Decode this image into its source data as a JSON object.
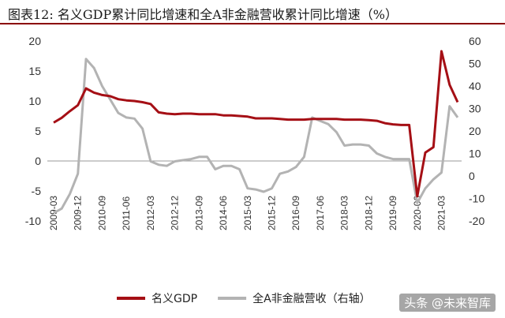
{
  "chart_data": {
    "type": "line",
    "title": "图表12:  名义GDP累计同比增速和全A非金融营收累计同比增速（%）",
    "x_ticks": [
      "2009-03",
      "2009-12",
      "2010-09",
      "2011-06",
      "2012-03",
      "2012-12",
      "2013-09",
      "2014-06",
      "2015-03",
      "2015-12",
      "2016-09",
      "2017-06",
      "2018-03",
      "2018-12",
      "2019-09",
      "2020-06",
      "2021-03"
    ],
    "x": [
      "2009-03",
      "2009-06",
      "2009-09",
      "2009-12",
      "2010-03",
      "2010-06",
      "2010-09",
      "2010-12",
      "2011-03",
      "2011-06",
      "2011-09",
      "2011-12",
      "2012-03",
      "2012-06",
      "2012-09",
      "2012-12",
      "2013-03",
      "2013-06",
      "2013-09",
      "2013-12",
      "2014-03",
      "2014-06",
      "2014-09",
      "2014-12",
      "2015-03",
      "2015-06",
      "2015-09",
      "2015-12",
      "2016-03",
      "2016-06",
      "2016-09",
      "2016-12",
      "2017-03",
      "2017-06",
      "2017-09",
      "2017-12",
      "2018-03",
      "2018-06",
      "2018-09",
      "2018-12",
      "2019-03",
      "2019-06",
      "2019-09",
      "2019-12",
      "2020-03",
      "2020-06",
      "2020-09",
      "2020-12",
      "2021-03",
      "2021-06",
      "2021-09"
    ],
    "y_left": {
      "range": [
        -10,
        20
      ],
      "ticks": [
        -10,
        -5,
        0,
        5,
        10,
        15,
        20
      ]
    },
    "y_right": {
      "range": [
        -20,
        60
      ],
      "ticks": [
        -20,
        -10,
        0,
        10,
        20,
        30,
        40,
        50,
        60
      ]
    },
    "series": [
      {
        "name": "名义GDP",
        "axis": "left",
        "color": "#a50f15",
        "values": [
          6.4,
          7.2,
          8.3,
          9.3,
          12.1,
          11.4,
          11.0,
          10.8,
          10.3,
          10.1,
          10.0,
          9.8,
          9.5,
          8.1,
          7.9,
          7.8,
          7.9,
          7.9,
          7.8,
          7.8,
          7.8,
          7.6,
          7.6,
          7.5,
          7.4,
          7.1,
          7.1,
          7.1,
          7.0,
          6.9,
          6.9,
          6.9,
          7.0,
          7.0,
          7.0,
          7.0,
          6.9,
          6.9,
          6.9,
          6.8,
          6.7,
          6.3,
          6.1,
          6.0,
          6.0,
          -5.9,
          1.4,
          2.3,
          18.3,
          12.7,
          9.8
        ]
      },
      {
        "name": "全A非金融营收（右轴）",
        "axis": "right",
        "color": "#b3b3b3",
        "values": [
          -16.5,
          -14.5,
          -8.0,
          1.0,
          52.0,
          48.0,
          40.0,
          34.0,
          28.0,
          26.0,
          25.5,
          21.0,
          6.5,
          5.0,
          4.5,
          6.5,
          7.0,
          7.5,
          8.5,
          8.5,
          3.0,
          4.5,
          4.5,
          3.0,
          -5.5,
          -6.0,
          -7.0,
          -5.5,
          1.0,
          2.0,
          4.0,
          8.5,
          26.0,
          24.5,
          23.0,
          19.5,
          13.5,
          14.0,
          14.0,
          13.5,
          10.0,
          8.5,
          7.5,
          7.5,
          7.5,
          -12.0,
          -5.5,
          -1.5,
          1.5,
          31.0,
          26.0
        ]
      }
    ],
    "legend_position": "bottom-left",
    "grid": false
  },
  "watermark": "头条 @未来智库"
}
